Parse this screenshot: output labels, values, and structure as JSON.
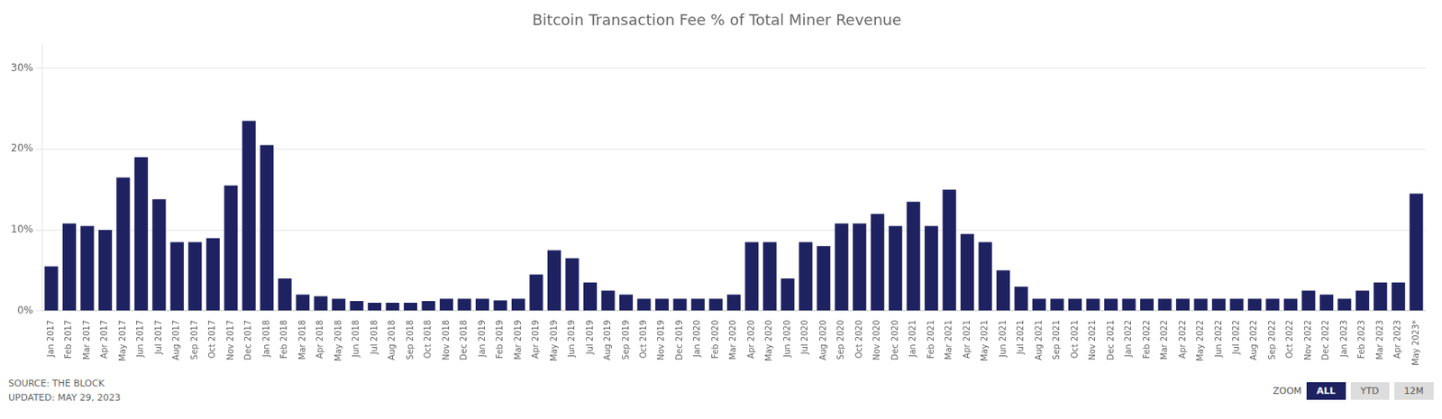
{
  "chart_data": {
    "type": "bar",
    "title": "Bitcoin Transaction Fee % of Total Miner Revenue",
    "categories": [
      "Jan 2017",
      "Feb 2017",
      "Mar 2017",
      "Apr 2017",
      "May 2017",
      "Jun 2017",
      "Jul 2017",
      "Aug 2017",
      "Sep 2017",
      "Oct 2017",
      "Nov 2017",
      "Dec 2017",
      "Jan 2018",
      "Feb 2018",
      "Mar 2018",
      "Apr 2018",
      "May 2018",
      "Jun 2018",
      "Jul 2018",
      "Aug 2018",
      "Sep 2018",
      "Oct 2018",
      "Nov 2018",
      "Dec 2018",
      "Jan 2019",
      "Feb 2019",
      "Mar 2019",
      "Apr 2019",
      "May 2019",
      "Jun 2019",
      "Jul 2019",
      "Aug 2019",
      "Sep 2019",
      "Oct 2019",
      "Nov 2019",
      "Dec 2019",
      "Jan 2020",
      "Feb 2020",
      "Mar 2020",
      "Apr 2020",
      "May 2020",
      "Jun 2020",
      "Jul 2020",
      "Aug 2020",
      "Sep 2020",
      "Oct 2020",
      "Nov 2020",
      "Dec 2020",
      "Jan 2021",
      "Feb 2021",
      "Mar 2021",
      "Apr 2021",
      "May 2021",
      "Jun 2021",
      "Jul 2021",
      "Aug 2021",
      "Sep 2021",
      "Oct 2021",
      "Nov 2021",
      "Dec 2021",
      "Jan 2022",
      "Feb 2022",
      "Mar 2022",
      "Apr 2022",
      "May 2022",
      "Jun 2022",
      "Jul 2022",
      "Aug 2022",
      "Sep 2022",
      "Oct 2022",
      "Nov 2022",
      "Dec 2022",
      "Jan 2023",
      "Feb 2023",
      "Mar 2023",
      "Apr 2023",
      "May 2023*"
    ],
    "values": [
      5.5,
      10.8,
      10.5,
      10.0,
      16.5,
      19.0,
      13.8,
      8.5,
      8.5,
      9.0,
      15.5,
      23.5,
      20.5,
      4.0,
      2.0,
      1.8,
      1.5,
      1.2,
      1.0,
      1.0,
      1.0,
      1.2,
      1.5,
      1.5,
      1.5,
      1.3,
      1.5,
      4.5,
      7.5,
      6.5,
      3.5,
      2.5,
      2.0,
      1.5,
      1.5,
      1.5,
      1.5,
      1.5,
      2.0,
      8.5,
      8.5,
      4.0,
      8.5,
      8.0,
      10.8,
      10.8,
      12.0,
      10.5,
      13.5,
      10.5,
      15.0,
      9.5,
      8.5,
      5.0,
      3.0,
      1.5,
      1.5,
      1.5,
      1.5,
      1.5,
      1.5,
      1.5,
      1.5,
      1.5,
      1.5,
      1.5,
      1.5,
      1.5,
      1.5,
      1.5,
      2.5,
      2.0,
      1.5,
      2.5,
      3.5,
      3.5,
      14.5
    ],
    "color": "#1e2261",
    "ylim": [
      0,
      33
    ],
    "yticks": [
      {
        "value": 0,
        "label": "0%"
      },
      {
        "value": 10,
        "label": "10%"
      },
      {
        "value": 20,
        "label": "20%"
      },
      {
        "value": 30,
        "label": "30%"
      }
    ],
    "grid": true,
    "annotations": [
      "SOURCE: THE BLOCK\nUPDATED: MAY 29, 2023",
      "ZOOM",
      "ALL",
      "YTD",
      "12M"
    ]
  }
}
